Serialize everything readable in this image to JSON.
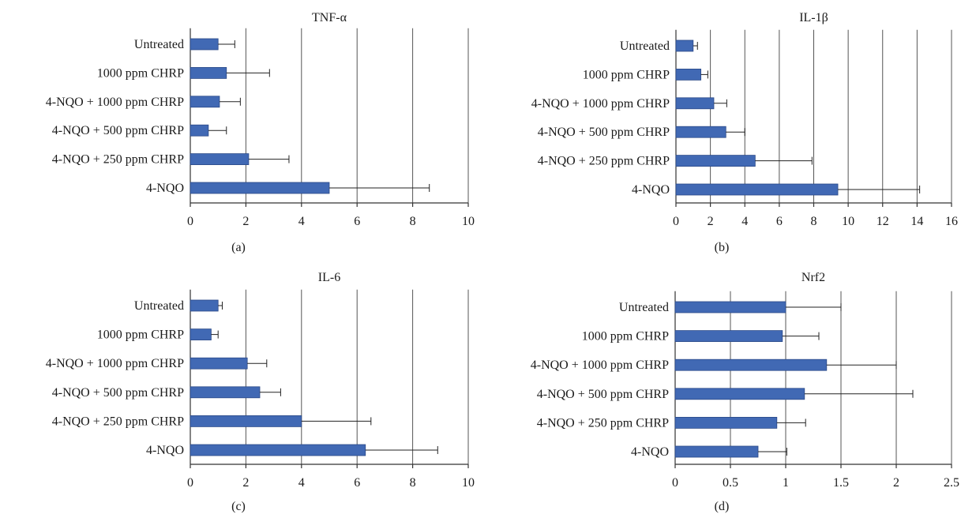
{
  "chart_data": [
    {
      "type": "bar",
      "orientation": "horizontal",
      "title": "TNF-α",
      "panel_label": "(a)",
      "categories": [
        "Untreated",
        "1000 ppm CHRP",
        "4-NQO + 1000 ppm CHRP",
        "4-NQO + 500 ppm CHRP",
        "4-NQO + 250 ppm CHRP",
        "4-NQO"
      ],
      "values": [
        1.0,
        1.3,
        1.05,
        0.65,
        2.1,
        5.0
      ],
      "errors": [
        0.6,
        1.55,
        0.75,
        0.65,
        1.45,
        3.6
      ],
      "xlim": [
        0,
        10
      ],
      "xticks": [
        0,
        2,
        4,
        6,
        8,
        10
      ],
      "tick_labels": [
        "0",
        "2",
        "4",
        "6",
        "8",
        "10"
      ],
      "grid": "vertical",
      "bar_color": "#4169b4"
    },
    {
      "type": "bar",
      "orientation": "horizontal",
      "title": "IL-1β",
      "panel_label": "(b)",
      "categories": [
        "Untreated",
        "1000 ppm CHRP",
        "4-NQO + 1000 ppm CHRP",
        "4-NQO + 500 ppm CHRP",
        "4-NQO + 250 ppm CHRP",
        "4-NQO"
      ],
      "values": [
        1.0,
        1.45,
        2.2,
        2.9,
        4.6,
        9.4
      ],
      "errors": [
        0.25,
        0.4,
        0.75,
        1.1,
        3.3,
        4.75
      ],
      "xlim": [
        0,
        16
      ],
      "xticks": [
        0,
        2,
        4,
        6,
        8,
        10,
        12,
        14,
        16
      ],
      "tick_labels": [
        "0",
        "2",
        "4",
        "6",
        "8",
        "10",
        "12",
        "14",
        "16"
      ],
      "grid": "vertical",
      "bar_color": "#4169b4"
    },
    {
      "type": "bar",
      "orientation": "horizontal",
      "title": "IL-6",
      "panel_label": "(c)",
      "categories": [
        "Untreated",
        "1000 ppm CHRP",
        "4-NQO + 1000 ppm CHRP",
        "4-NQO + 500 ppm CHRP",
        "4-NQO + 250 ppm CHRP",
        "4-NQO"
      ],
      "values": [
        1.0,
        0.75,
        2.05,
        2.5,
        4.0,
        6.3
      ],
      "errors": [
        0.15,
        0.25,
        0.7,
        0.75,
        2.5,
        2.6
      ],
      "xlim": [
        0,
        10
      ],
      "xticks": [
        0,
        2,
        4,
        6,
        8,
        10
      ],
      "tick_labels": [
        "0",
        "2",
        "4",
        "6",
        "8",
        "10"
      ],
      "grid": "vertical",
      "bar_color": "#4169b4"
    },
    {
      "type": "bar",
      "orientation": "horizontal",
      "title": "Nrf2",
      "panel_label": "(d)",
      "categories": [
        "Untreated",
        "1000 ppm CHRP",
        "4-NQO + 1000 ppm CHRP",
        "4-NQO + 500 ppm CHRP",
        "4-NQO + 250 ppm CHRP",
        "4-NQO"
      ],
      "values": [
        1.0,
        0.97,
        1.37,
        1.17,
        0.92,
        0.75
      ],
      "errors": [
        0.5,
        0.33,
        0.63,
        0.98,
        0.26,
        0.26
      ],
      "xlim": [
        0,
        2.5
      ],
      "xticks": [
        0,
        0.5,
        1,
        1.5,
        2,
        2.5
      ],
      "tick_labels": [
        "0",
        "0.5",
        "1",
        "1.5",
        "2",
        "2.5"
      ],
      "grid": "vertical",
      "bar_color": "#4169b4"
    }
  ]
}
